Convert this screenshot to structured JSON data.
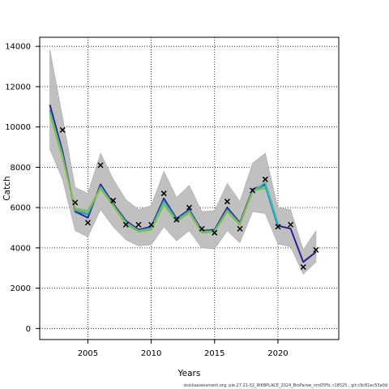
{
  "chart_data": {
    "type": "line",
    "xlabel": "Years",
    "ylabel": "Catch",
    "caption": "stockassessment.org, ple.27.21-32_WKBPLACE_2024_BioParsw_nm05Fb, r18525 , git:c9c81ec53a0d",
    "xlim": [
      2001.2,
      2024.8
    ],
    "ylim": [
      -550,
      14450
    ],
    "xticks": [
      2005,
      2010,
      2015,
      2020
    ],
    "yticks": [
      0,
      2000,
      4000,
      6000,
      8000,
      10000,
      12000,
      14000
    ],
    "grid": true,
    "band": {
      "years": [
        2002,
        2003,
        2004,
        2005,
        2006,
        2007,
        2008,
        2009,
        2010,
        2011,
        2012,
        2013,
        2014,
        2015,
        2016,
        2017,
        2018,
        2019,
        2020,
        2021,
        2022,
        2023
      ],
      "upper": [
        13850,
        10500,
        7000,
        6700,
        8700,
        7400,
        6400,
        5900,
        6100,
        7800,
        6500,
        7100,
        5800,
        5850,
        7200,
        6300,
        8200,
        8700,
        6000,
        5900,
        3900,
        4850
      ],
      "lower": [
        8900,
        7400,
        4850,
        4550,
        5900,
        5050,
        4400,
        4100,
        4150,
        5050,
        4350,
        4850,
        4000,
        3950,
        4850,
        4250,
        5800,
        5700,
        4200,
        4050,
        2700,
        3300
      ]
    },
    "series": [
      {
        "color": "#2b1e8f",
        "x": [
          2002,
          2003,
          2004,
          2005,
          2006,
          2007,
          2008,
          2009,
          2010,
          2011,
          2012,
          2013,
          2014,
          2015,
          2016,
          2017,
          2018,
          2019,
          2020,
          2021,
          2022,
          2023
        ],
        "y": [
          11100,
          8800,
          5800,
          5500,
          7150,
          6200,
          5350,
          4900,
          5050,
          6450,
          5450,
          5900,
          4850,
          4900,
          6000,
          5250,
          6900,
          7150,
          5100,
          4950,
          3300,
          3800
        ]
      },
      {
        "color": "#2a8fb8",
        "x": [
          2002,
          2003,
          2004,
          2005,
          2006,
          2007,
          2008,
          2009,
          2010,
          2011,
          2012,
          2013,
          2014,
          2015,
          2016,
          2017,
          2018,
          2019,
          2020
        ],
        "y": [
          10850,
          8650,
          5850,
          5650,
          7050,
          6150,
          5300,
          4850,
          5000,
          6350,
          5400,
          5850,
          4800,
          4850,
          5900,
          5200,
          6850,
          7100,
          5050
        ]
      },
      {
        "color": "#3fc2b0",
        "x": [
          2002,
          2003,
          2004,
          2005,
          2006,
          2007,
          2008,
          2009,
          2010,
          2011,
          2012,
          2013,
          2014,
          2015,
          2016,
          2017,
          2018,
          2019,
          2020
        ],
        "y": [
          10750,
          8550,
          5900,
          5750,
          7000,
          6100,
          5250,
          4850,
          4950,
          6250,
          5350,
          5800,
          4800,
          4850,
          5850,
          5200,
          6800,
          7250,
          5250
        ]
      },
      {
        "color": "#8aba3c",
        "x": [
          2002,
          2003,
          2004,
          2005,
          2006,
          2007,
          2008,
          2009,
          2010,
          2011,
          2012,
          2013,
          2014,
          2015,
          2016,
          2017,
          2018,
          2019
        ],
        "y": [
          10650,
          8500,
          5950,
          5850,
          6950,
          6100,
          5200,
          4800,
          4900,
          6150,
          5300,
          5750,
          4750,
          4800,
          5800,
          5150,
          6850,
          6950
        ]
      }
    ],
    "observed": {
      "x": [
        2003,
        2004,
        2005,
        2006,
        2007,
        2008,
        2009,
        2010,
        2011,
        2012,
        2013,
        2014,
        2015,
        2016,
        2017,
        2018,
        2019,
        2020,
        2021,
        2022,
        2023
      ],
      "y": [
        9850,
        6250,
        5250,
        8100,
        6350,
        5150,
        5150,
        5150,
        6700,
        5400,
        6000,
        4950,
        4750,
        6300,
        4950,
        6850,
        7400,
        5050,
        5150,
        3050,
        3900
      ]
    }
  }
}
